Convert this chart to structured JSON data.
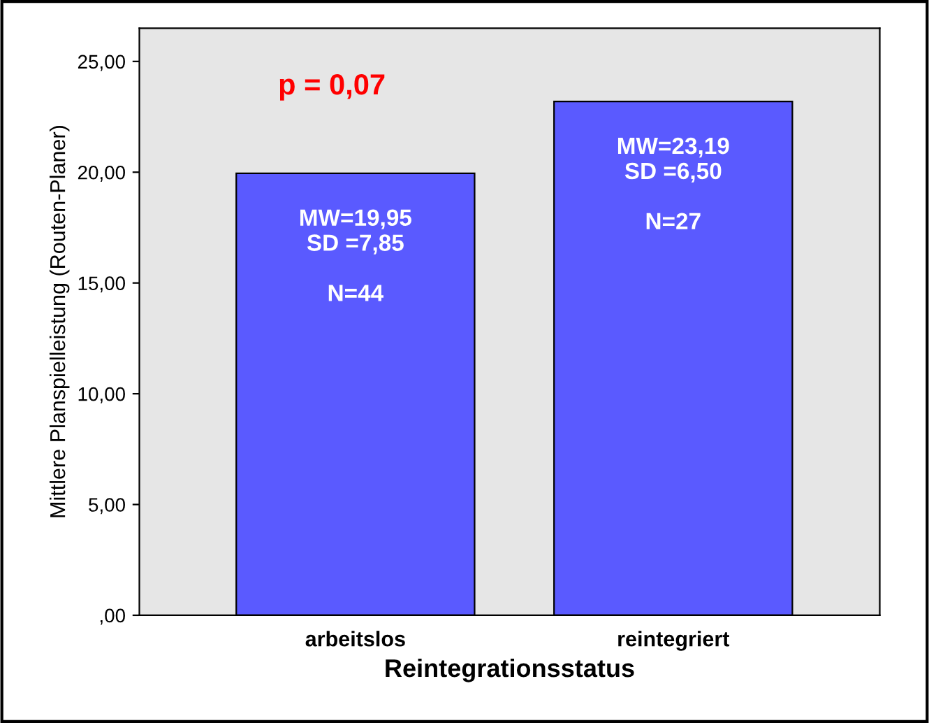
{
  "chart_data": {
    "type": "bar",
    "xlabel": "Reintegrationsstatus",
    "ylabel": "Mittlere Planspielleistung (Routen-Planer)",
    "categories": [
      "arbeitslos",
      "reintegriert"
    ],
    "values": [
      19.95,
      23.19
    ],
    "color": "#5a5aff",
    "value_labels": [
      "MW=19,95\nSD =7,85\n\nN=44",
      "MW=23,19\nSD =6,50\n\nN=27"
    ],
    "annotations": [
      "p = 0,07"
    ],
    "ylim": [
      0,
      26.5
    ],
    "yticks": [
      {
        "value": 0,
        "label": ",00"
      },
      {
        "value": 5,
        "label": "5,00"
      },
      {
        "value": 10,
        "label": "10,00"
      },
      {
        "value": 15,
        "label": "15,00"
      },
      {
        "value": 20,
        "label": "20,00"
      },
      {
        "value": 25,
        "label": "25,00"
      }
    ],
    "grid": false,
    "legend": false
  }
}
